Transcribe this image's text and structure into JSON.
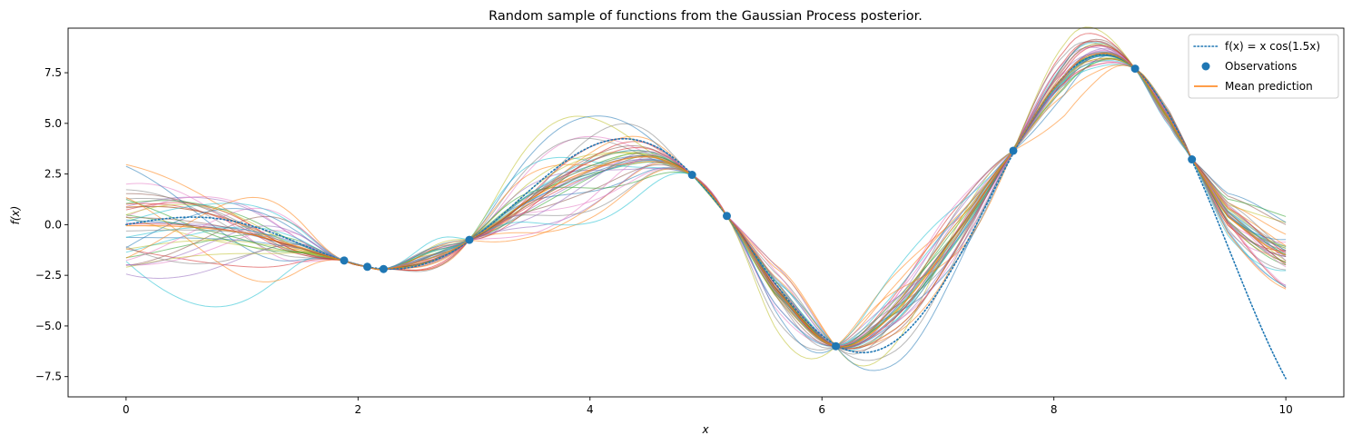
{
  "chart_data": {
    "type": "line",
    "title": "Random sample of functions from the Gaussian Process posterior.",
    "xlabel": "x",
    "ylabel": "f(x)",
    "xlim": [
      -0.5,
      10.5
    ],
    "ylim": [
      -8.5,
      9.7
    ],
    "x_ticks": [
      0,
      2,
      4,
      6,
      8,
      10
    ],
    "x_tick_labels": [
      "0",
      "2",
      "4",
      "6",
      "8",
      "10"
    ],
    "y_ticks": [
      -7.5,
      -5.0,
      -2.5,
      0.0,
      2.5,
      5.0,
      7.5
    ],
    "y_tick_labels": [
      "−7.5",
      "−5.0",
      "−2.5",
      "0.0",
      "2.5",
      "5.0",
      "7.5"
    ],
    "grid": false,
    "legend_position": "top-right",
    "legend": [
      {
        "label": "f(x) = x cos(1.5x)",
        "style": "dotted-line",
        "color": "#1f77b4"
      },
      {
        "label": "Observations",
        "style": "marker",
        "color": "#1f77b4"
      },
      {
        "label": "Mean prediction",
        "style": "solid-line",
        "color": "#ff7f0e"
      }
    ],
    "true_function": {
      "name": "f(x) = x cos(1.5x)",
      "x_range": [
        0,
        10
      ],
      "color": "#1f77b4"
    },
    "observations": {
      "name": "Observations",
      "x": [
        1.88,
        2.08,
        2.22,
        2.96,
        4.88,
        5.18,
        6.12,
        7.65,
        8.7,
        9.19
      ],
      "y": [
        -1.77,
        -2.08,
        -2.19,
        -0.75,
        2.46,
        0.43,
        -6.0,
        3.65,
        7.7,
        3.22
      ]
    },
    "mean_prediction": {
      "name": "Mean prediction",
      "color": "#ff7f0e",
      "x": [
        0,
        0.5,
        1,
        1.5,
        1.88,
        2.08,
        2.22,
        2.6,
        2.96,
        3.5,
        4.0,
        4.5,
        4.88,
        5.18,
        5.6,
        6.12,
        6.6,
        7.1,
        7.65,
        8.1,
        8.4,
        8.7,
        9.0,
        9.19,
        9.5,
        10
      ],
      "y": [
        -0.05,
        -0.1,
        -0.4,
        -1.1,
        -1.77,
        -2.08,
        -2.19,
        -1.7,
        -0.75,
        1.3,
        2.7,
        3.35,
        2.46,
        0.43,
        -3.2,
        -6.0,
        -4.5,
        -0.9,
        3.65,
        7.4,
        8.45,
        7.7,
        5.2,
        3.22,
        0.4,
        -1.5
      ]
    },
    "posterior_samples": {
      "count": 40,
      "opacity": 0.55,
      "line_width": 1
    }
  },
  "colors": {
    "true_function": "#1f77b4",
    "observations": "#1f77b4",
    "mean": "#ff7f0e",
    "samples": [
      "#1f77b4",
      "#ff7f0e",
      "#2ca02c",
      "#d62728",
      "#9467bd",
      "#8c564b",
      "#e377c2",
      "#7f7f7f",
      "#bcbd22",
      "#17becf"
    ]
  }
}
